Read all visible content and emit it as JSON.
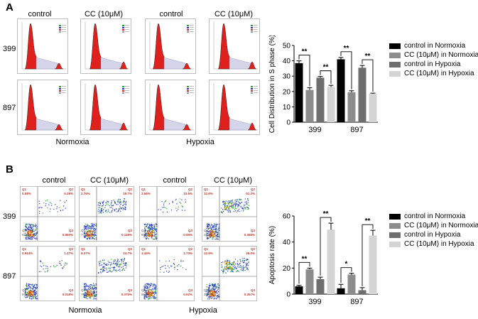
{
  "panel_a": {
    "label": "A",
    "col_labels": [
      "control",
      "CC (10μM)",
      "control",
      "CC (10μM)"
    ],
    "row_labels": [
      "399",
      "897"
    ],
    "group_labels": [
      "Normoxia",
      "Hypoxia"
    ]
  },
  "panel_b": {
    "label": "B",
    "col_labels": [
      "control",
      "CC (10μM)",
      "control",
      "CC (10μM)"
    ],
    "row_labels": [
      "399",
      "897"
    ],
    "group_labels": [
      "Normoxia",
      "Hypoxia"
    ],
    "quadrants": [
      [
        {
          "q1": "Q1",
          "q1v": "0.08%",
          "q2": "Q2",
          "q2v": "6.29%",
          "q3": "Q3",
          "q3v": "0.960%",
          "q4": "Q4",
          "q4v": "93.5%"
        },
        {
          "q1": "Q1",
          "q1v": "2.76%",
          "q2": "Q2",
          "q2v": "19.7%",
          "q3": "Q3",
          "q3v": "0.119%",
          "q4": "Q4",
          "q4v": "77.5%"
        },
        {
          "q1": "Q1",
          "q1v": "3.56%",
          "q2": "Q2",
          "q2v": "10.5%",
          "q3": "Q3",
          "q3v": "0.05%",
          "q4": "Q4",
          "q4v": "85.8%"
        },
        {
          "q1": "Q1",
          "q1v": "12.6%",
          "q2": "Q2",
          "q2v": "51.2%",
          "q3": "Q3",
          "q3v": "0.368%",
          "q4": "Q4",
          "q4v": "35.8%"
        }
      ],
      [
        {
          "q1": "Q1",
          "q1v": "0.914%",
          "q2": "Q2",
          "q2v": "1.47%",
          "q3": "Q3",
          "q3v": "0.018%",
          "q4": "Q4",
          "q4v": "97.6%"
        },
        {
          "q1": "Q1",
          "q1v": "6.37%",
          "q2": "Q2",
          "q2v": "14.7%",
          "q3": "Q3",
          "q3v": "0.075%",
          "q4": "Q4",
          "q4v": "78.8%"
        },
        {
          "q1": "Q1",
          "q1v": "1.44%",
          "q2": "Q2",
          "q2v": "1.73%",
          "q3": "Q3",
          "q3v": "0.02%",
          "q4": "Q4",
          "q4v": "96.8%"
        },
        {
          "q1": "Q1",
          "q1v": "12.9%",
          "q2": "Q2",
          "q2v": "46.0%",
          "q3": "Q3",
          "q3v": "0.357%",
          "q4": "Q4",
          "q4v": "40.8%"
        }
      ]
    ]
  },
  "chart_data": [
    {
      "type": "bar",
      "categories": [
        "399",
        "897"
      ],
      "series": [
        {
          "name": "control in Normoxia",
          "values": [
            38.5,
            41
          ],
          "errors": [
            1.5,
            1.2
          ],
          "color": "#000000"
        },
        {
          "name": "CC (10μM) in Normoxia",
          "values": [
            21,
            19.5
          ],
          "errors": [
            1.5,
            1
          ],
          "color": "#8c8c8c"
        },
        {
          "name": "control in Hypoxia",
          "values": [
            29,
            35.5
          ],
          "errors": [
            0.8,
            1.5
          ],
          "color": "#6e6e6e"
        },
        {
          "name": "CC (10μM) in Hypoxia",
          "values": [
            23,
            18.5
          ],
          "errors": [
            1,
            0.4
          ],
          "color": "#d4d4d4"
        }
      ],
      "ylabel": "Cell Distribution in S phase (%)",
      "ylim": [
        0,
        50
      ],
      "yticks": [
        "0",
        "10",
        "20",
        "30",
        "40",
        "50"
      ],
      "significance": [
        "**",
        "**",
        "**",
        "**"
      ],
      "legend_position": "right"
    },
    {
      "type": "bar",
      "categories": [
        "399",
        "897"
      ],
      "series": [
        {
          "name": "control in Normoxia",
          "values": [
            6,
            4.5
          ],
          "errors": [
            0.8,
            3
          ],
          "color": "#000000"
        },
        {
          "name": "CC (10μM) in Normoxia",
          "values": [
            19,
            15
          ],
          "errors": [
            1,
            1
          ],
          "color": "#8c8c8c"
        },
        {
          "name": "control in Hypoxia",
          "values": [
            11.5,
            3
          ],
          "errors": [
            1.5,
            2
          ],
          "color": "#6e6e6e"
        },
        {
          "name": "CC (10μM) in Hypoxia",
          "values": [
            49.5,
            45
          ],
          "errors": [
            5,
            4
          ],
          "color": "#d4d4d4"
        }
      ],
      "ylabel": "Apoptosis rate (%)",
      "ylim": [
        0,
        60
      ],
      "yticks": [
        "0",
        "20",
        "40",
        "60"
      ],
      "significance": [
        "**",
        "**",
        "*",
        "**"
      ],
      "legend_position": "right"
    }
  ]
}
